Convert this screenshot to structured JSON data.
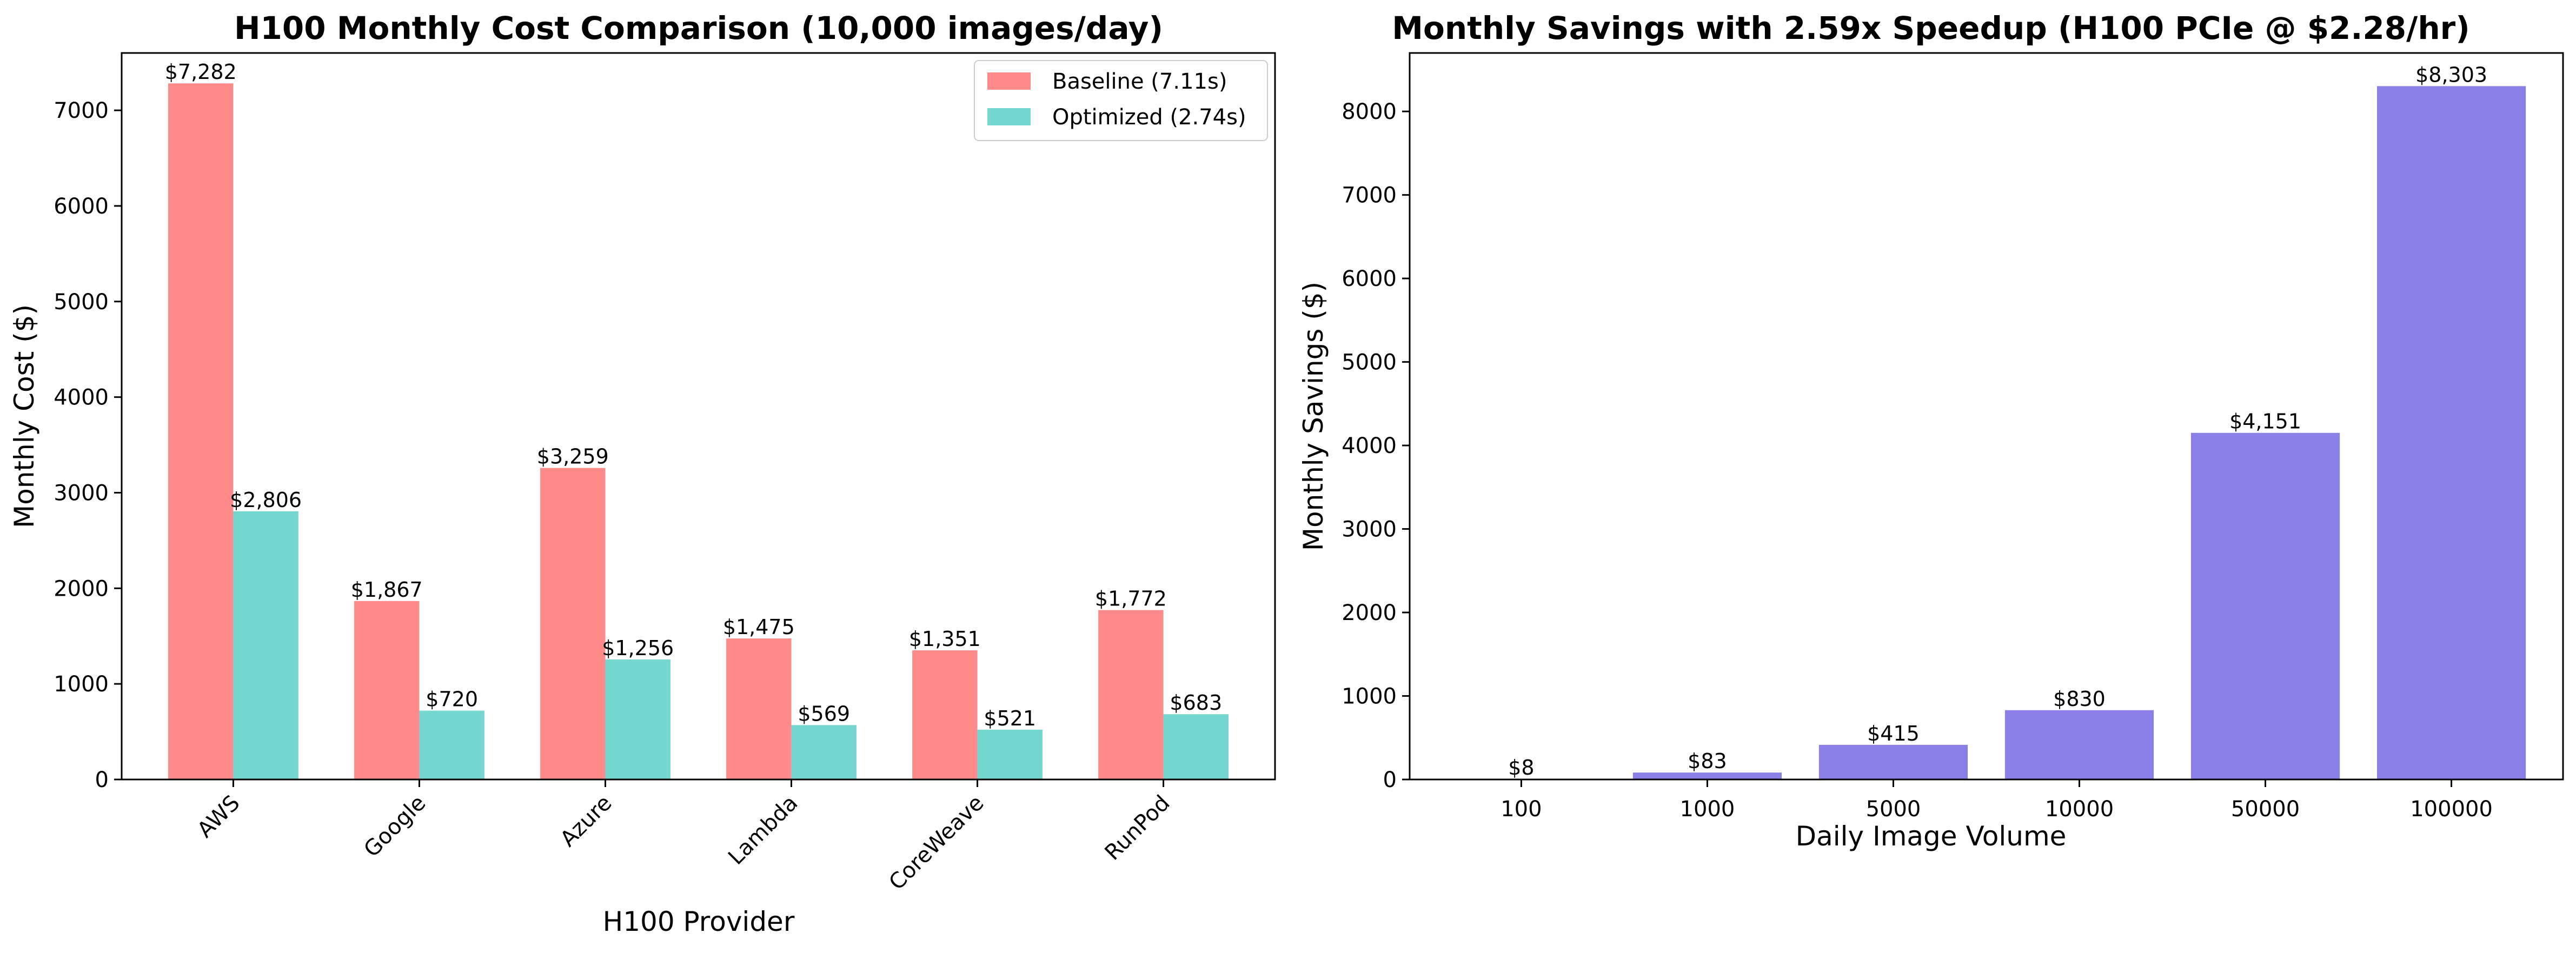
{
  "chart_data": [
    {
      "type": "bar",
      "title": "H100 Monthly Cost Comparison (10,000 images/day)",
      "xlabel": "H100 Provider",
      "ylabel": "Monthly Cost ($)",
      "ylim": [
        0,
        7600
      ],
      "yticks": [
        0,
        1000,
        2000,
        3000,
        4000,
        5000,
        6000,
        7000
      ],
      "grid": false,
      "legend_position": "top-right",
      "categories": [
        "AWS",
        "Google",
        "Azure",
        "Lambda",
        "CoreWeave",
        "RunPod"
      ],
      "series": [
        {
          "name": "Baseline (7.11s)",
          "color": "#ff8a8a",
          "values": [
            7282,
            1867,
            3259,
            1475,
            1351,
            1772
          ],
          "labels": [
            "$7,282",
            "$1,867",
            "$3,259",
            "$1,475",
            "$1,351",
            "$1,772"
          ]
        },
        {
          "name": "Optimized (2.74s)",
          "color": "#76d7d0",
          "values": [
            2806,
            720,
            1256,
            569,
            521,
            683
          ],
          "labels": [
            "$2,806",
            "$720",
            "$1,256",
            "$569",
            "$521",
            "$683"
          ]
        }
      ]
    },
    {
      "type": "bar",
      "title": "Monthly Savings with 2.59x Speedup (H100 PCIe @ $2.28/hr)",
      "xlabel": "Daily Image Volume",
      "ylabel": "Monthly Savings ($)",
      "ylim": [
        0,
        8700
      ],
      "yticks": [
        0,
        1000,
        2000,
        3000,
        4000,
        5000,
        6000,
        7000,
        8000
      ],
      "grid": false,
      "categories": [
        "100",
        "1000",
        "5000",
        "10000",
        "50000",
        "100000"
      ],
      "series": [
        {
          "color": "#8b80e8",
          "values": [
            8,
            83,
            415,
            830,
            4151,
            8303
          ],
          "labels": [
            "$8",
            "$83",
            "$415",
            "$830",
            "$4,151",
            "$8,303"
          ]
        }
      ]
    }
  ]
}
